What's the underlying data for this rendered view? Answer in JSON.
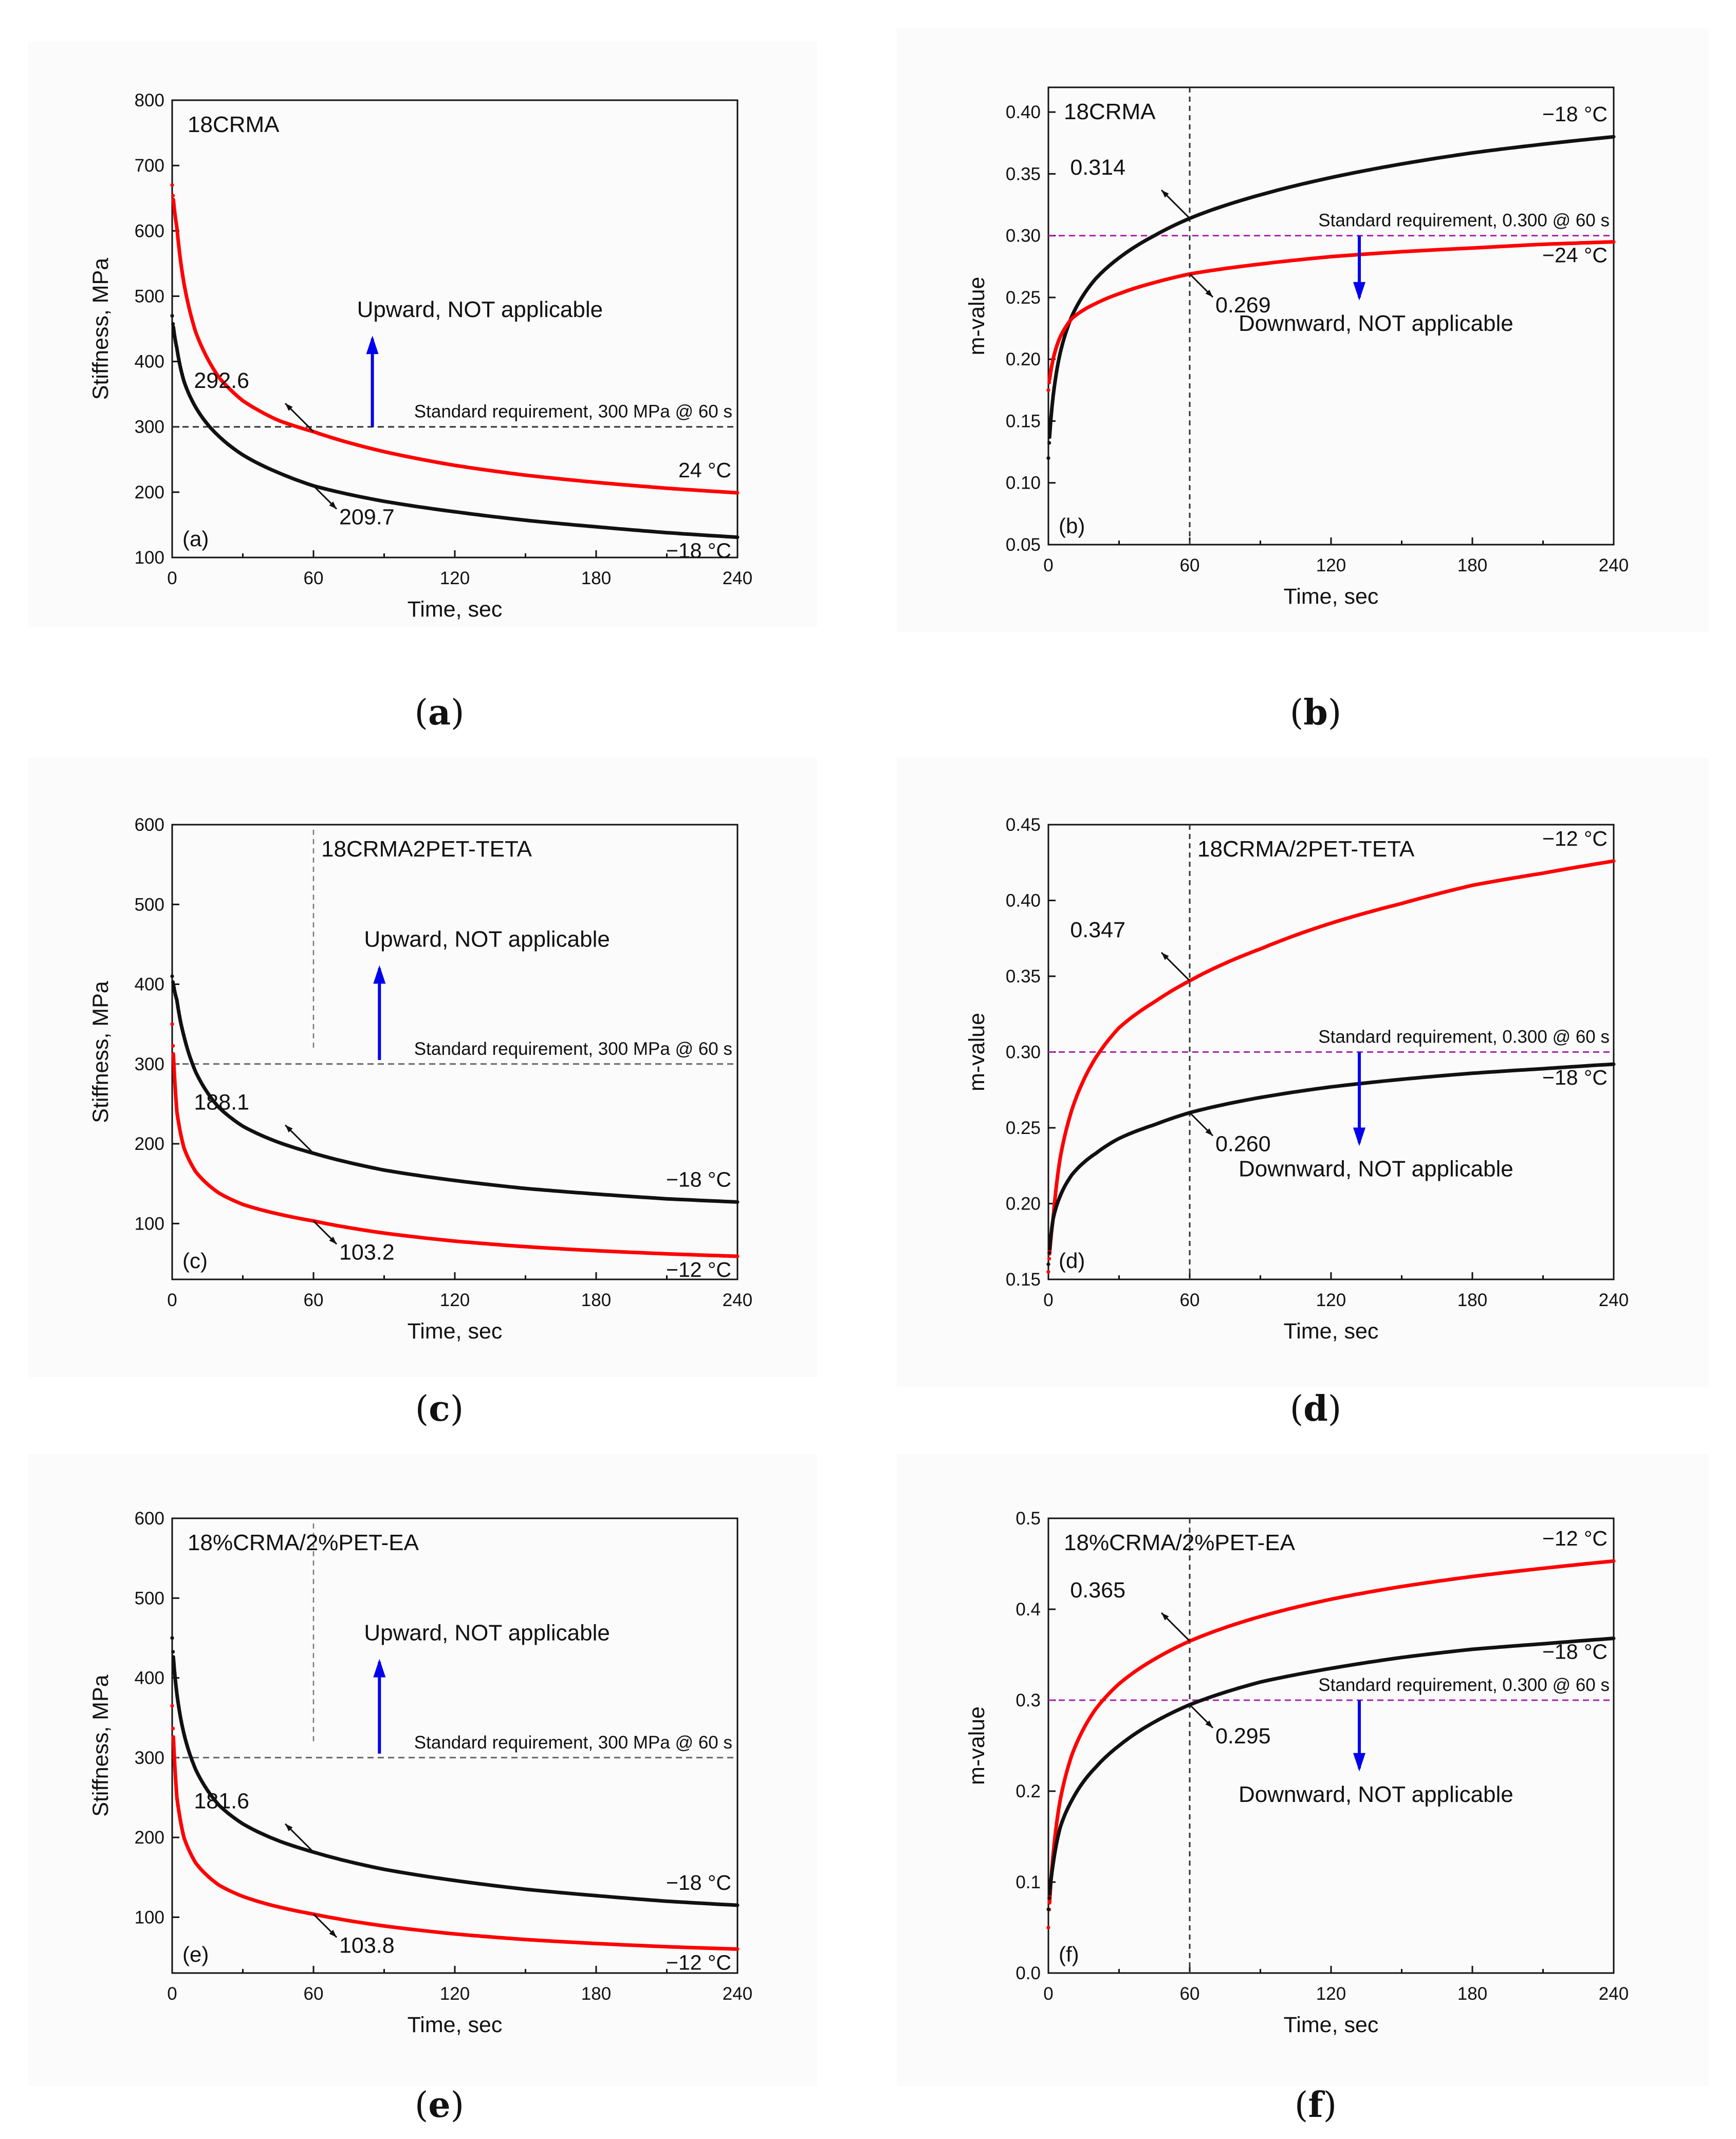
{
  "figure": {
    "captions": [
      {
        "open": "(",
        "letter": "a",
        "close": ")"
      },
      {
        "open": "(",
        "letter": "b",
        "close": ")"
      },
      {
        "open": "(",
        "letter": "c",
        "close": ")"
      },
      {
        "open": "(",
        "letter": "d",
        "close": ")"
      },
      {
        "open": "(",
        "letter": "e",
        "close": ")"
      },
      {
        "open": "(",
        "letter": "f",
        "close": ")"
      }
    ]
  },
  "chart_data": [
    {
      "panel": "a",
      "type": "line",
      "title": "18CRMA",
      "panel_letter": "(a)",
      "xlabel": "Time, sec",
      "ylabel": "Stiffness, MPa",
      "xlim": [
        0,
        240
      ],
      "ylim": [
        100,
        800
      ],
      "xticks": [
        0,
        60,
        120,
        180,
        240
      ],
      "yticks": [
        100,
        200,
        300,
        400,
        500,
        600,
        700,
        800
      ],
      "vline": null,
      "standard": {
        "value": 300,
        "label": "Standard requirement, 300 MPa @ 60 s",
        "color": "#333333"
      },
      "direction": {
        "label": "Upward, NOT applicable",
        "x": 85,
        "from": 300,
        "to": 435
      },
      "series": [
        {
          "name": "24 °C",
          "color": "#ff0000",
          "values_at": {
            "0": 670,
            "2": 605,
            "5": 520,
            "10": 445,
            "20": 375,
            "30": 340,
            "45": 310,
            "60": 292.6,
            "90": 262,
            "120": 241,
            "150": 226,
            "180": 215,
            "210": 206,
            "240": 199
          }
        },
        {
          "name": "−18 °C",
          "color": "#111111",
          "values_at": {
            "0": 470,
            "2": 420,
            "5": 370,
            "10": 330,
            "20": 285,
            "30": 257,
            "45": 230,
            "60": 209.7,
            "90": 186,
            "120": 170,
            "150": 157,
            "180": 147,
            "210": 138,
            "240": 131
          }
        }
      ],
      "annotations": [
        {
          "text": "292.6",
          "series": 0,
          "x": 60
        },
        {
          "text": "209.7",
          "series": 1,
          "x": 60
        }
      ]
    },
    {
      "panel": "b",
      "type": "line",
      "title": "18CRMA",
      "panel_letter": "(b)",
      "xlabel": "Time, sec",
      "ylabel": "m-value",
      "xlim": [
        0,
        240
      ],
      "ylim": [
        0.05,
        0.42
      ],
      "xticks": [
        0,
        60,
        120,
        180,
        240
      ],
      "yticks": [
        0.05,
        0.1,
        0.15,
        0.2,
        0.25,
        0.3,
        0.35,
        0.4
      ],
      "vline": 60,
      "standard": {
        "value": 0.3,
        "label": "Standard requirement, 0.300 @ 60 s",
        "color": "#aa22aa"
      },
      "direction": {
        "label": "Downward, NOT applicable",
        "x": 132,
        "from": 0.3,
        "to": 0.25
      },
      "series": [
        {
          "name": "−18 °C",
          "color": "#111111",
          "values_at": {
            "0": 0.12,
            "2": 0.17,
            "5": 0.205,
            "10": 0.235,
            "20": 0.265,
            "30": 0.282,
            "45": 0.3,
            "60": 0.314,
            "90": 0.333,
            "120": 0.347,
            "150": 0.358,
            "180": 0.367,
            "210": 0.374,
            "240": 0.38
          }
        },
        {
          "name": "−24 °C",
          "color": "#ff0000",
          "values_at": {
            "0": 0.175,
            "2": 0.2,
            "5": 0.218,
            "10": 0.233,
            "20": 0.245,
            "30": 0.253,
            "45": 0.262,
            "60": 0.269,
            "90": 0.277,
            "120": 0.283,
            "150": 0.287,
            "180": 0.29,
            "210": 0.293,
            "240": 0.295
          }
        }
      ],
      "annotations": [
        {
          "text": "0.314",
          "series": 0,
          "x": 60
        },
        {
          "text": "0.269",
          "series": 1,
          "x": 60
        }
      ]
    },
    {
      "panel": "c",
      "type": "line",
      "title": "18CRMA2PET-TETA",
      "panel_letter": "(c)",
      "xlabel": "Time, sec",
      "ylabel": "Stiffness, MPa",
      "xlim": [
        0,
        240
      ],
      "ylim": [
        30,
        600
      ],
      "xticks": [
        0,
        60,
        120,
        180,
        240
      ],
      "yticks": [
        100,
        200,
        300,
        400,
        500,
        600
      ],
      "vline": null,
      "guide_x": 60,
      "standard": {
        "value": 300,
        "label": "Standard requirement, 300 MPa @ 60 s",
        "color": "#666666"
      },
      "direction": {
        "label": "Upward, NOT applicable",
        "x": 88,
        "from": 305,
        "to": 420
      },
      "series": [
        {
          "name": "−18 °C",
          "color": "#111111",
          "values_at": {
            "0": 410,
            "2": 380,
            "5": 335,
            "10": 290,
            "20": 245,
            "30": 222,
            "45": 202,
            "60": 188.1,
            "90": 167,
            "120": 154,
            "150": 144,
            "180": 137,
            "210": 131,
            "240": 127
          }
        },
        {
          "name": "−12 °C",
          "color": "#ff0000",
          "values_at": {
            "0": 350,
            "2": 240,
            "5": 195,
            "10": 165,
            "20": 138,
            "30": 124,
            "45": 112,
            "60": 103.2,
            "90": 88,
            "120": 78,
            "150": 71,
            "180": 66,
            "210": 62,
            "240": 59
          }
        }
      ],
      "annotations": [
        {
          "text": "188.1",
          "series": 0,
          "x": 60
        },
        {
          "text": "103.2",
          "series": 1,
          "x": 60
        }
      ]
    },
    {
      "panel": "d",
      "type": "line",
      "title": "18CRMA/2PET-TETA",
      "panel_letter": "(d)",
      "xlabel": "Time, sec",
      "ylabel": "m-value",
      "xlim": [
        0,
        240
      ],
      "ylim": [
        0.15,
        0.45
      ],
      "xticks": [
        0,
        60,
        120,
        180,
        240
      ],
      "yticks": [
        0.15,
        0.2,
        0.25,
        0.3,
        0.35,
        0.4,
        0.45
      ],
      "vline": 60,
      "standard": {
        "value": 0.3,
        "label": "Standard requirement, 0.300 @ 60 s",
        "color": "#aa22aa"
      },
      "direction": {
        "label": "Downward, NOT applicable",
        "x": 132,
        "from": 0.3,
        "to": 0.24
      },
      "series": [
        {
          "name": "−12 °C",
          "color": "#ff0000",
          "values_at": {
            "0": 0.155,
            "2": 0.19,
            "5": 0.23,
            "10": 0.262,
            "20": 0.296,
            "30": 0.316,
            "45": 0.333,
            "60": 0.347,
            "90": 0.368,
            "120": 0.385,
            "150": 0.398,
            "180": 0.41,
            "210": 0.418,
            "240": 0.426
          }
        },
        {
          "name": "−18 °C",
          "color": "#111111",
          "values_at": {
            "0": 0.16,
            "2": 0.19,
            "5": 0.205,
            "10": 0.219,
            "20": 0.233,
            "30": 0.243,
            "45": 0.252,
            "60": 0.26,
            "90": 0.27,
            "120": 0.277,
            "150": 0.282,
            "180": 0.286,
            "210": 0.289,
            "240": 0.292
          }
        }
      ],
      "annotations": [
        {
          "text": "0.347",
          "series": 0,
          "x": 60
        },
        {
          "text": "0.260",
          "series": 1,
          "x": 60
        }
      ]
    },
    {
      "panel": "e",
      "type": "line",
      "title": "18%CRMA/2%PET-EA",
      "panel_letter": "(e)",
      "xlabel": "Time, sec",
      "ylabel": "Stiffness, MPa",
      "xlim": [
        0,
        240
      ],
      "ylim": [
        30,
        600
      ],
      "xticks": [
        0,
        60,
        120,
        180,
        240
      ],
      "yticks": [
        100,
        200,
        300,
        400,
        500,
        600
      ],
      "vline": null,
      "guide_x": 60,
      "standard": {
        "value": 300,
        "label": "Standard requirement, 300 MPa @ 60 s",
        "color": "#666666"
      },
      "direction": {
        "label": "Upward, NOT applicable",
        "x": 88,
        "from": 305,
        "to": 420
      },
      "series": [
        {
          "name": "−18 °C",
          "color": "#111111",
          "values_at": {
            "0": 450,
            "2": 380,
            "5": 330,
            "10": 285,
            "20": 240,
            "30": 217,
            "45": 196,
            "60": 181.6,
            "90": 160,
            "120": 146,
            "150": 135,
            "180": 127,
            "210": 120,
            "240": 115
          }
        },
        {
          "name": "−12 °C",
          "color": "#ff0000",
          "values_at": {
            "0": 365,
            "2": 250,
            "5": 200,
            "10": 168,
            "20": 140,
            "30": 126,
            "45": 113,
            "60": 103.8,
            "90": 89,
            "120": 79,
            "150": 72,
            "180": 67,
            "210": 63,
            "240": 60
          }
        }
      ],
      "annotations": [
        {
          "text": "181.6",
          "series": 0,
          "x": 60
        },
        {
          "text": "103.8",
          "series": 1,
          "x": 60
        }
      ]
    },
    {
      "panel": "f",
      "type": "line",
      "title": "18%CRMA/2%PET-EA",
      "panel_letter": "(f)",
      "xlabel": "Time, sec",
      "ylabel": "m-value",
      "xlim": [
        0,
        240
      ],
      "ylim": [
        0.0,
        0.5
      ],
      "xticks": [
        0,
        60,
        120,
        180,
        240
      ],
      "yticks": [
        0.0,
        0.1,
        0.2,
        0.3,
        0.4,
        0.5
      ],
      "vline": 60,
      "standard": {
        "value": 0.3,
        "label": "Standard requirement, 0.300 @ 60 s",
        "color": "#aa22aa"
      },
      "direction": {
        "label": "Downward, NOT applicable",
        "x": 132,
        "from": 0.3,
        "to": 0.225
      },
      "series": [
        {
          "name": "−12 °C",
          "color": "#ff0000",
          "values_at": {
            "0": 0.05,
            "2": 0.13,
            "5": 0.19,
            "10": 0.24,
            "20": 0.29,
            "30": 0.318,
            "45": 0.345,
            "60": 0.365,
            "90": 0.392,
            "120": 0.411,
            "150": 0.425,
            "180": 0.436,
            "210": 0.445,
            "240": 0.453
          }
        },
        {
          "name": "−18 °C",
          "color": "#111111",
          "values_at": {
            "0": 0.07,
            "2": 0.12,
            "5": 0.16,
            "10": 0.19,
            "20": 0.226,
            "30": 0.25,
            "45": 0.276,
            "60": 0.295,
            "90": 0.32,
            "120": 0.335,
            "150": 0.347,
            "180": 0.356,
            "210": 0.362,
            "240": 0.368
          }
        }
      ],
      "annotations": [
        {
          "text": "0.365",
          "series": 0,
          "x": 60
        },
        {
          "text": "0.295",
          "series": 1,
          "x": 60
        }
      ]
    }
  ]
}
